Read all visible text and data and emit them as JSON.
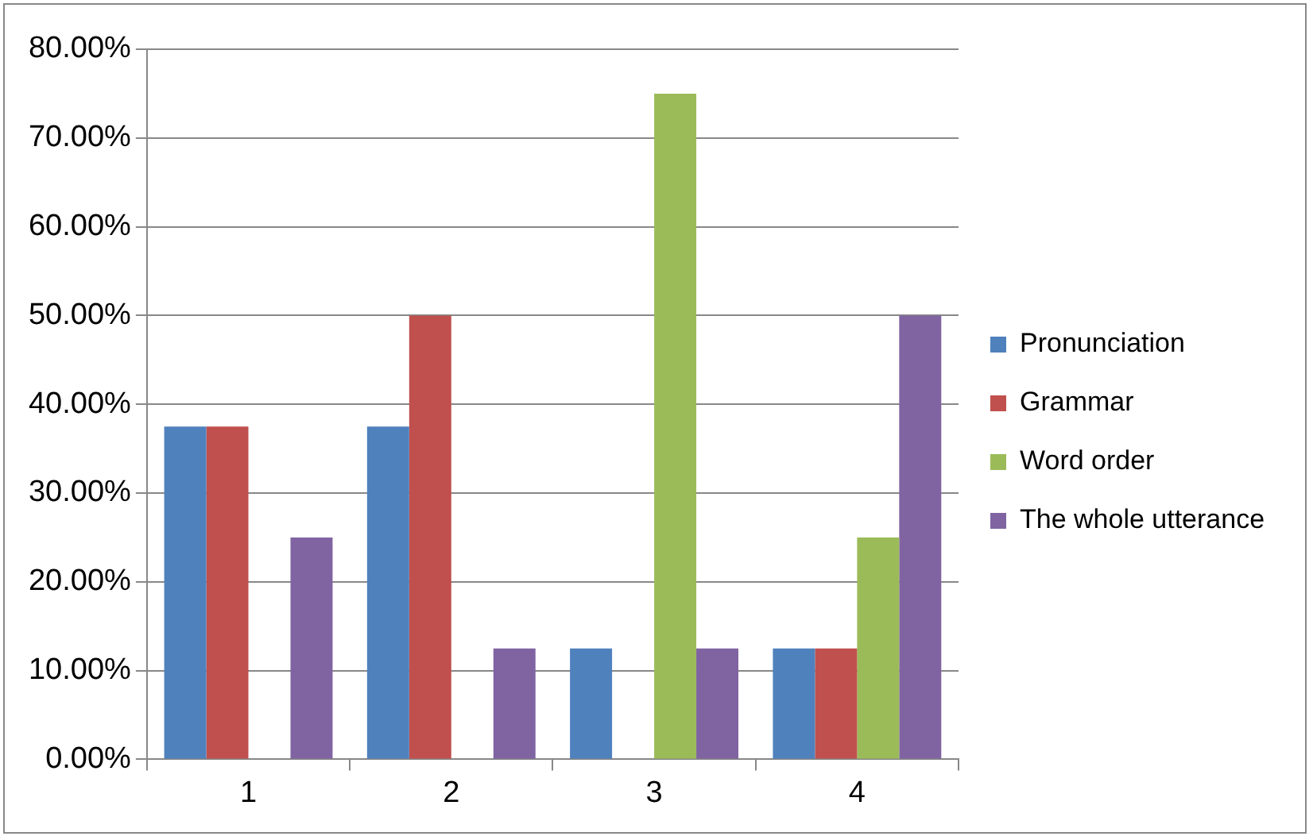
{
  "chart_data": {
    "type": "bar",
    "categories": [
      "1",
      "2",
      "3",
      "4"
    ],
    "series": [
      {
        "name": "Pronunciation",
        "color": "#4f81bd",
        "values": [
          37.5,
          37.5,
          12.5,
          12.5
        ]
      },
      {
        "name": "Grammar",
        "color": "#c0504d",
        "values": [
          37.5,
          50,
          0,
          12.5
        ]
      },
      {
        "name": "Word order",
        "color": "#9bbb59",
        "values": [
          0,
          0,
          75,
          25
        ]
      },
      {
        "name": "The whole utterance",
        "color": "#8064a2",
        "values": [
          25,
          12.5,
          12.5,
          50
        ]
      }
    ],
    "ylim": [
      0,
      80
    ],
    "yticks": [
      {
        "value": 0,
        "label": "0.00%"
      },
      {
        "value": 10,
        "label": "10.00%"
      },
      {
        "value": 20,
        "label": "20.00%"
      },
      {
        "value": 30,
        "label": "30.00%"
      },
      {
        "value": 40,
        "label": "40.00%"
      },
      {
        "value": 50,
        "label": "50.00%"
      },
      {
        "value": 60,
        "label": "60.00%"
      },
      {
        "value": 70,
        "label": "70.00%"
      },
      {
        "value": 80,
        "label": "80.00%"
      }
    ],
    "grid": "y",
    "legend": "right"
  }
}
